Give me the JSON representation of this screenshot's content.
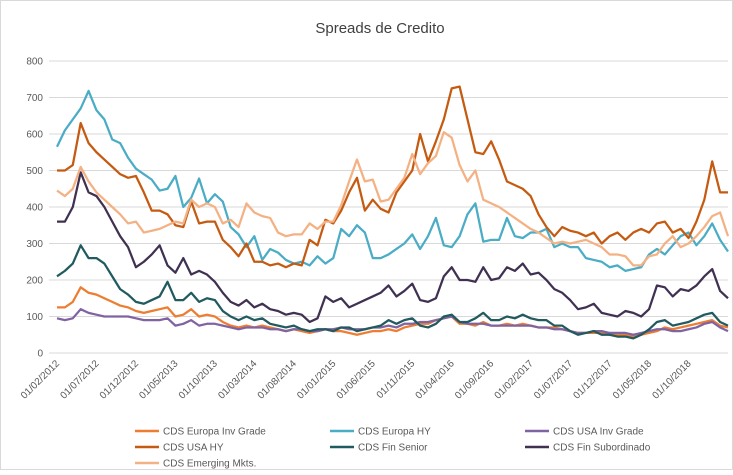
{
  "chart_data": {
    "type": "line",
    "title": "Spreads de Credito",
    "categories": [
      "01/02/2012",
      null,
      null,
      null,
      null,
      "01/07/2012",
      null,
      null,
      null,
      null,
      "01/12/2012",
      null,
      null,
      null,
      null,
      "01/05/2013",
      null,
      null,
      null,
      null,
      "01/10/2013",
      null,
      null,
      null,
      null,
      "01/03/2014",
      null,
      null,
      null,
      null,
      "01/08/2014",
      null,
      null,
      null,
      null,
      "01/01/2015",
      null,
      null,
      null,
      null,
      "01/06/2015",
      null,
      null,
      null,
      null,
      "01/11/2015",
      null,
      null,
      null,
      null,
      "01/04/2016",
      null,
      null,
      null,
      null,
      "01/09/2016",
      null,
      null,
      null,
      null,
      "01/02/2017",
      null,
      null,
      null,
      null,
      "01/07/2017",
      null,
      null,
      null,
      null,
      "01/12/2017",
      null,
      null,
      null,
      null,
      "01/05/2018",
      null,
      null,
      null,
      null,
      "01/10/2018",
      null,
      null,
      null,
      null,
      null
    ],
    "ylim": [
      0,
      800
    ],
    "yticks": [
      0,
      100,
      200,
      300,
      400,
      500,
      600,
      700,
      800
    ],
    "grid": true,
    "legend": "bottom",
    "series": [
      {
        "name": "CDS Europa Inv Grade",
        "color": "#ed7d31",
        "values": [
          125,
          125,
          140,
          180,
          165,
          160,
          150,
          140,
          130,
          125,
          115,
          110,
          115,
          120,
          125,
          100,
          105,
          120,
          100,
          105,
          100,
          85,
          75,
          70,
          75,
          70,
          75,
          70,
          65,
          60,
          65,
          60,
          55,
          60,
          65,
          60,
          60,
          55,
          50,
          55,
          60,
          60,
          65,
          60,
          70,
          75,
          80,
          80,
          90,
          95,
          100,
          80,
          80,
          75,
          85,
          75,
          75,
          80,
          75,
          80,
          75,
          70,
          70,
          70,
          65,
          60,
          55,
          55,
          55,
          55,
          50,
          50,
          50,
          45,
          50,
          55,
          60,
          70,
          65,
          70,
          75,
          80,
          85,
          90,
          75,
          70
        ]
      },
      {
        "name": "CDS Europa HY",
        "color": "#4bacc6",
        "values": [
          565,
          610,
          640,
          670,
          718,
          665,
          640,
          585,
          575,
          535,
          505,
          490,
          475,
          445,
          450,
          485,
          400,
          425,
          478,
          410,
          435,
          415,
          345,
          325,
          290,
          320,
          255,
          285,
          275,
          255,
          245,
          250,
          240,
          265,
          245,
          260,
          340,
          320,
          350,
          330,
          260,
          260,
          270,
          285,
          300,
          325,
          285,
          320,
          370,
          295,
          290,
          320,
          380,
          410,
          305,
          310,
          310,
          370,
          320,
          315,
          330,
          330,
          340,
          290,
          300,
          290,
          290,
          260,
          255,
          250,
          235,
          240,
          225,
          230,
          235,
          270,
          285,
          270,
          295,
          320,
          330,
          295,
          320,
          355,
          310,
          278
        ]
      },
      {
        "name": "CDS USA Inv Grade",
        "color": "#8064a2",
        "values": [
          95,
          90,
          95,
          120,
          110,
          105,
          100,
          100,
          100,
          100,
          95,
          90,
          90,
          90,
          95,
          75,
          80,
          90,
          75,
          80,
          80,
          75,
          70,
          65,
          70,
          70,
          70,
          65,
          65,
          60,
          65,
          65,
          60,
          60,
          65,
          65,
          70,
          65,
          65,
          65,
          70,
          70,
          75,
          70,
          80,
          80,
          85,
          85,
          90,
          95,
          100,
          85,
          80,
          80,
          80,
          75,
          75,
          75,
          75,
          75,
          75,
          70,
          70,
          65,
          65,
          60,
          55,
          55,
          60,
          60,
          55,
          55,
          55,
          50,
          55,
          60,
          65,
          65,
          60,
          60,
          65,
          70,
          80,
          85,
          70,
          60
        ]
      },
      {
        "name": "CDS USA HY",
        "color": "#c55a11",
        "values": [
          500,
          500,
          515,
          630,
          575,
          550,
          530,
          510,
          490,
          480,
          485,
          440,
          390,
          390,
          380,
          350,
          345,
          415,
          355,
          360,
          360,
          310,
          290,
          265,
          300,
          250,
          250,
          240,
          245,
          235,
          245,
          240,
          310,
          295,
          365,
          355,
          390,
          440,
          480,
          390,
          420,
          395,
          385,
          440,
          470,
          500,
          600,
          525,
          580,
          640,
          725,
          730,
          640,
          550,
          545,
          580,
          530,
          470,
          460,
          450,
          430,
          380,
          345,
          320,
          345,
          335,
          330,
          320,
          330,
          300,
          320,
          330,
          310,
          330,
          340,
          330,
          355,
          360,
          330,
          340,
          315,
          360,
          420,
          525,
          440,
          440
        ]
      },
      {
        "name": "CDS Fin Senior",
        "color": "#215a5f",
        "values": [
          210,
          225,
          245,
          295,
          260,
          260,
          245,
          210,
          175,
          160,
          140,
          135,
          145,
          155,
          195,
          145,
          145,
          165,
          140,
          150,
          145,
          115,
          100,
          90,
          100,
          90,
          95,
          80,
          75,
          70,
          75,
          65,
          60,
          65,
          65,
          60,
          70,
          70,
          60,
          65,
          70,
          75,
          90,
          80,
          90,
          95,
          75,
          70,
          80,
          100,
          105,
          85,
          85,
          95,
          110,
          90,
          90,
          100,
          95,
          105,
          95,
          90,
          90,
          75,
          75,
          60,
          50,
          55,
          60,
          50,
          50,
          45,
          45,
          40,
          50,
          65,
          85,
          90,
          75,
          80,
          85,
          95,
          105,
          110,
          85,
          75
        ]
      },
      {
        "name": "CDS Fin Subordinado",
        "color": "#403152",
        "values": [
          360,
          360,
          400,
          495,
          440,
          430,
          400,
          360,
          320,
          290,
          235,
          250,
          270,
          295,
          240,
          220,
          260,
          215,
          225,
          215,
          195,
          165,
          140,
          130,
          145,
          125,
          135,
          120,
          115,
          105,
          110,
          105,
          85,
          95,
          155,
          140,
          150,
          125,
          135,
          145,
          155,
          165,
          185,
          155,
          170,
          190,
          145,
          140,
          150,
          210,
          235,
          200,
          200,
          195,
          235,
          200,
          205,
          235,
          225,
          245,
          215,
          220,
          200,
          175,
          165,
          145,
          120,
          125,
          135,
          110,
          105,
          100,
          115,
          110,
          100,
          120,
          185,
          180,
          155,
          175,
          170,
          185,
          210,
          230,
          170,
          150
        ]
      },
      {
        "name": "CDS Emerging Mkts.",
        "color": "#f4b183",
        "values": [
          445,
          430,
          450,
          510,
          470,
          440,
          420,
          400,
          380,
          355,
          360,
          330,
          335,
          340,
          350,
          360,
          355,
          420,
          400,
          410,
          400,
          355,
          365,
          345,
          410,
          385,
          375,
          370,
          330,
          320,
          325,
          325,
          355,
          340,
          360,
          360,
          405,
          470,
          530,
          470,
          475,
          415,
          420,
          450,
          480,
          545,
          490,
          520,
          540,
          605,
          590,
          515,
          470,
          500,
          420,
          410,
          400,
          385,
          370,
          355,
          340,
          330,
          315,
          300,
          305,
          300,
          305,
          310,
          300,
          290,
          270,
          270,
          265,
          240,
          240,
          265,
          270,
          300,
          320,
          290,
          300,
          320,
          345,
          375,
          385,
          320
        ]
      }
    ]
  }
}
